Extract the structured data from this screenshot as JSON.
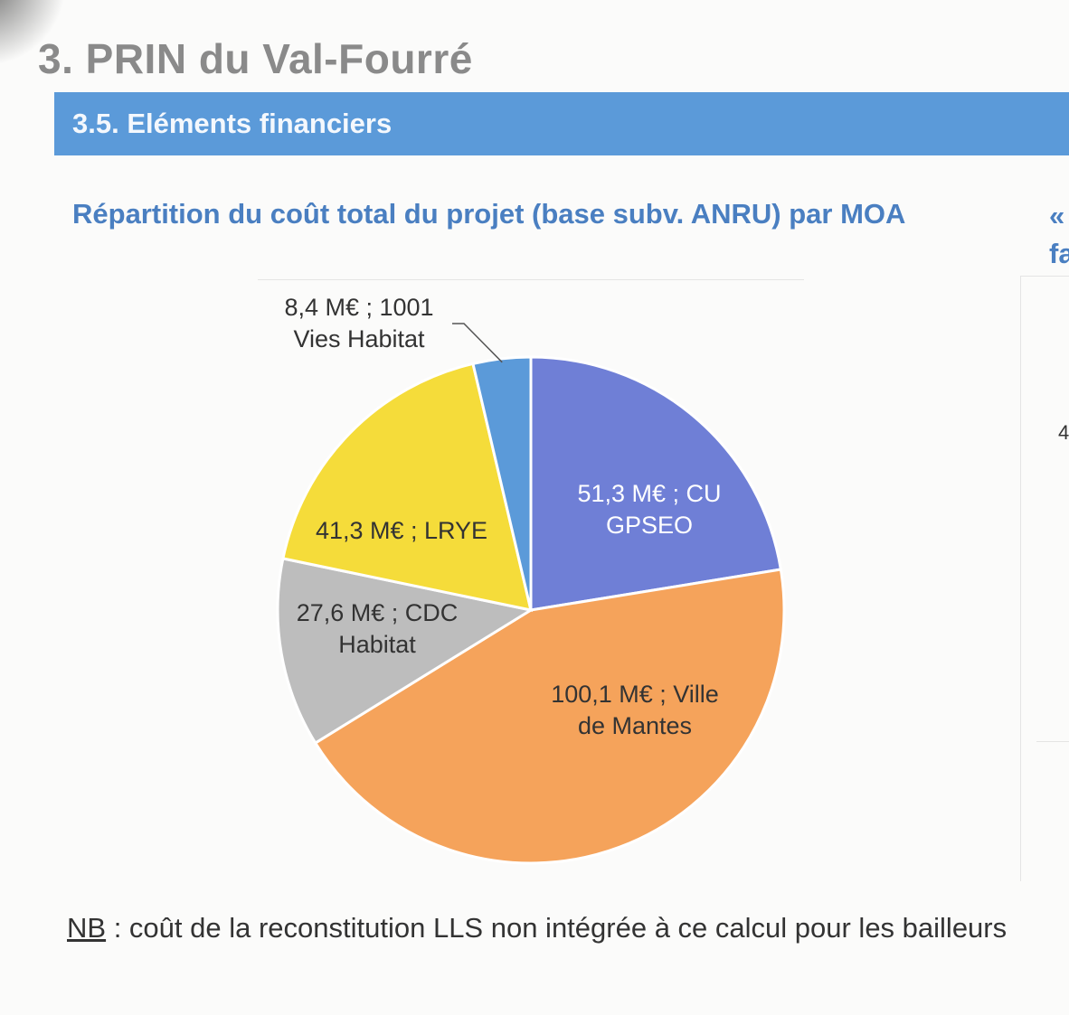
{
  "header": {
    "title": "3. PRIN du Val-Fourré",
    "section": "3.5. Eléments financiers"
  },
  "right_fragment": {
    "line1": "«",
    "line2": "fa",
    "digit": "4"
  },
  "chart_data": {
    "type": "pie",
    "title": "Répartition du coût total du projet (base subv. ANRU) par MOA",
    "unit": "M€",
    "slices": [
      {
        "line1": "51,3 M€ ; CU",
        "line2": "GPSEO",
        "value": 51.3,
        "color": "#6f7fd6",
        "text_color": "#ffffff"
      },
      {
        "line1": "100,1 M€ ; Ville",
        "line2": "de Mantes",
        "value": 100.1,
        "color": "#f5a35b",
        "text_color": "#333333"
      },
      {
        "line1": "27,6 M€ ; CDC",
        "line2": "Habitat",
        "value": 27.6,
        "color": "#bdbdbd",
        "text_color": "#333333"
      },
      {
        "line1": "41,3 M€ ; LRYE",
        "line2": "",
        "value": 41.3,
        "color": "#f5dc3a",
        "text_color": "#333333"
      },
      {
        "line1": "8,4 M€ ; 1001",
        "line2": "Vies Habitat",
        "value": 8.4,
        "color": "#5b9ad9",
        "text_color": "#333333"
      }
    ]
  },
  "note": {
    "prefix": "NB",
    "text": " : coût de la reconstitution LLS non intégrée à ce calcul pour les bailleurs"
  }
}
